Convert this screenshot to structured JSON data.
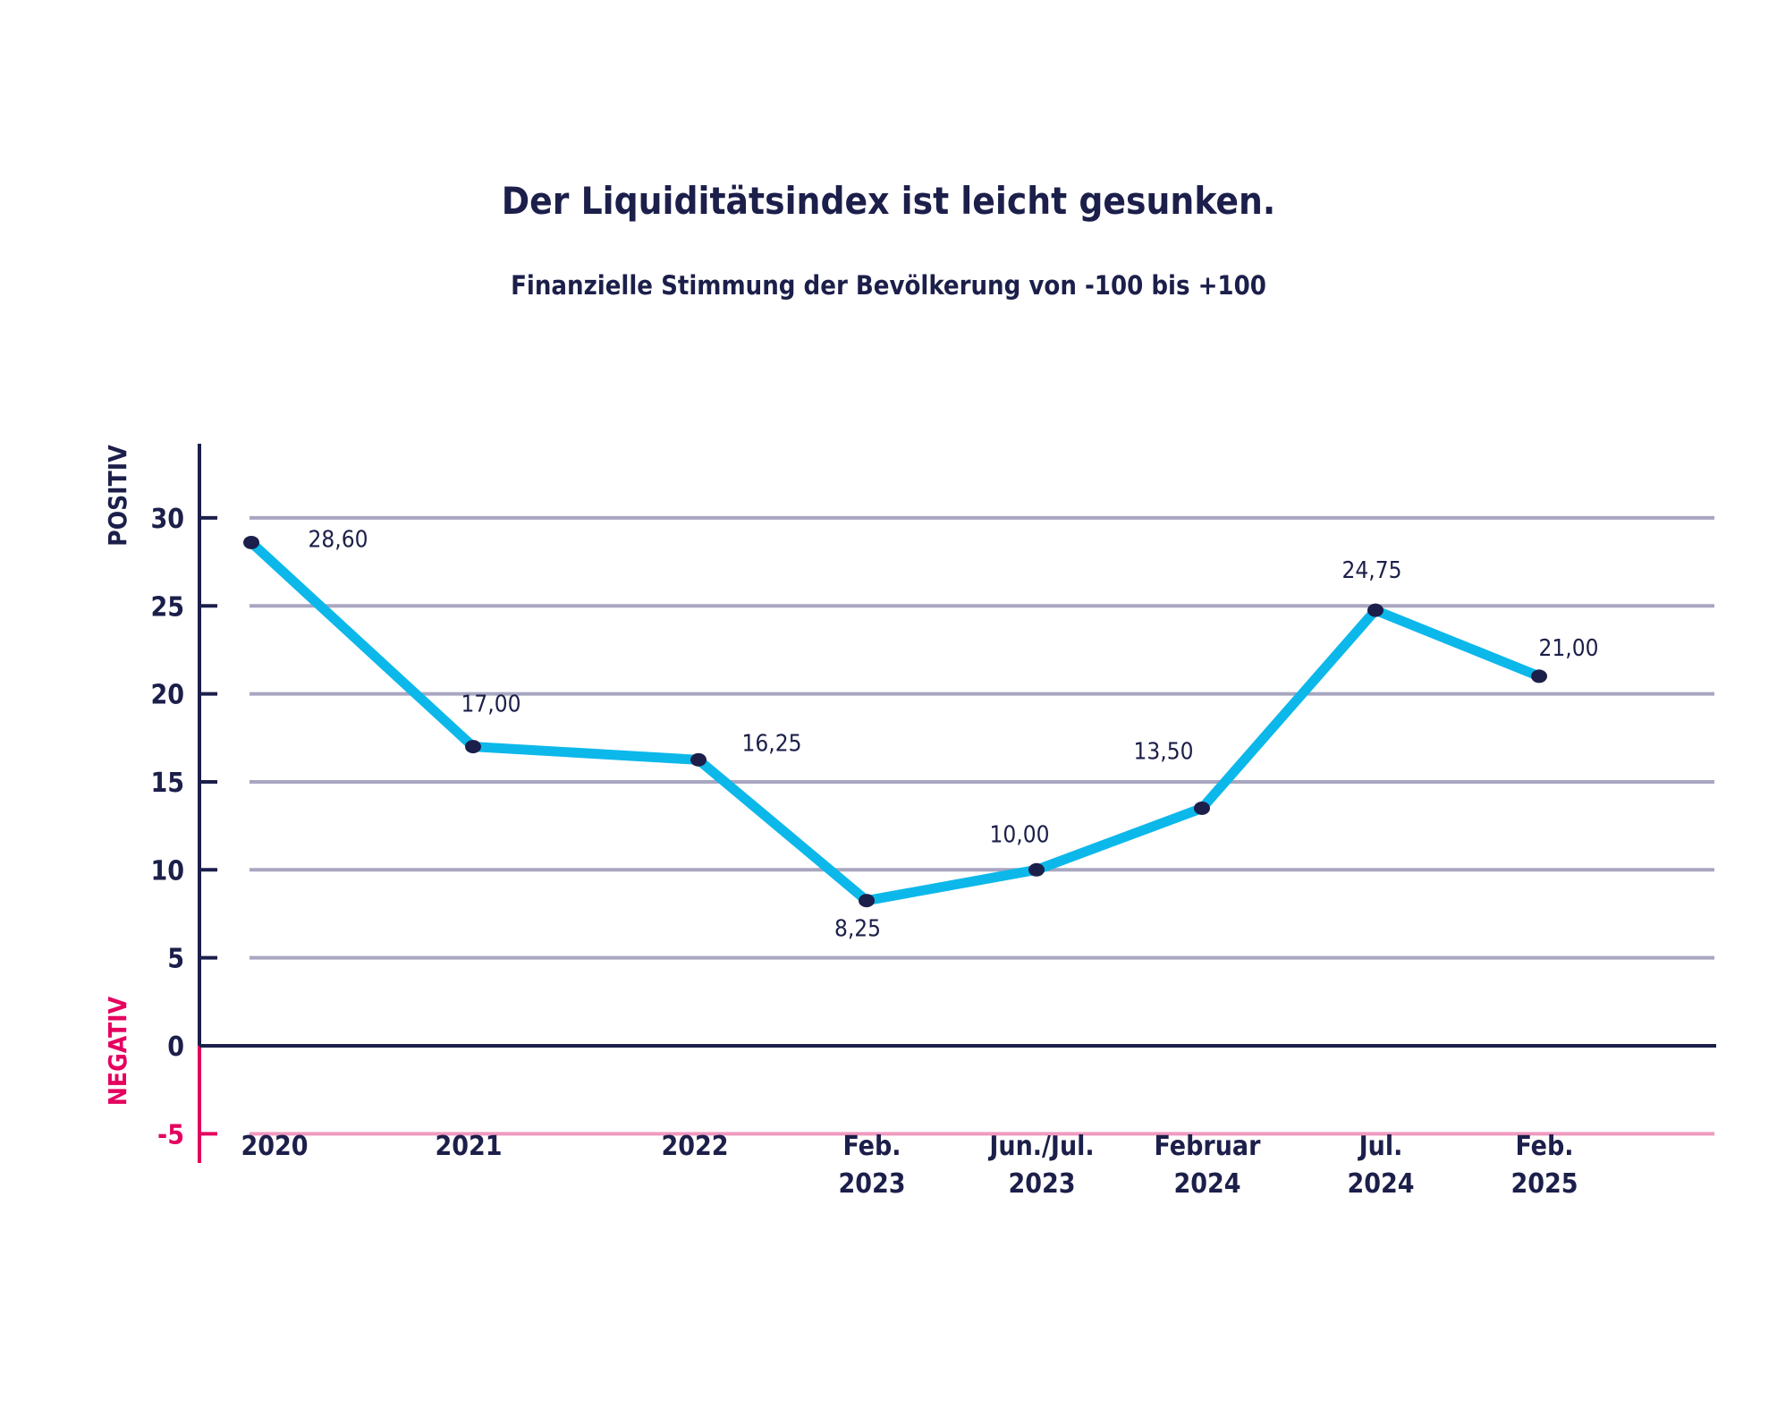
{
  "title": "Der Liquiditätsindex ist leicht gesunken.",
  "subtitle": "Finanzielle Stimmung der Bevölkerung von -100 bis +100",
  "chart_data": {
    "type": "line",
    "title": "Der Liquiditätsindex ist leicht gesunken.",
    "subtitle": "Finanzielle Stimmung der Bevölkerung von -100 bis +100",
    "categories": [
      [
        "2020"
      ],
      [
        "2021"
      ],
      [
        "2022"
      ],
      [
        "Feb.",
        "2023"
      ],
      [
        "Jun./Jul.",
        "2023"
      ],
      [
        "Februar",
        "2024"
      ],
      [
        "Jul.",
        "2024"
      ],
      [
        "Feb.",
        "2025"
      ]
    ],
    "values": [
      28.6,
      17.0,
      16.25,
      8.25,
      10.0,
      13.5,
      24.75,
      21.0
    ],
    "data_labels": [
      "28,60",
      "17,00",
      "16,25",
      "8,25",
      "10,00",
      "13,50",
      "24,75",
      "21,00"
    ],
    "y_ticks": [
      "30",
      "25",
      "20",
      "15",
      "10",
      "5",
      "0",
      "-5"
    ],
    "y_tick_values": [
      30,
      25,
      20,
      15,
      10,
      5,
      0,
      -5
    ],
    "ylim": [
      -7,
      34
    ],
    "positive_label": "POSITIV",
    "negative_label": "NEGATIV",
    "grid": true,
    "colors": {
      "line": "#0cb8ea",
      "marker": "#1c1f4a",
      "axis": "#1c1f4a",
      "grid": "#a8a6c0",
      "negative": "#e5005f",
      "negative_grid": "#f19ac0"
    }
  }
}
